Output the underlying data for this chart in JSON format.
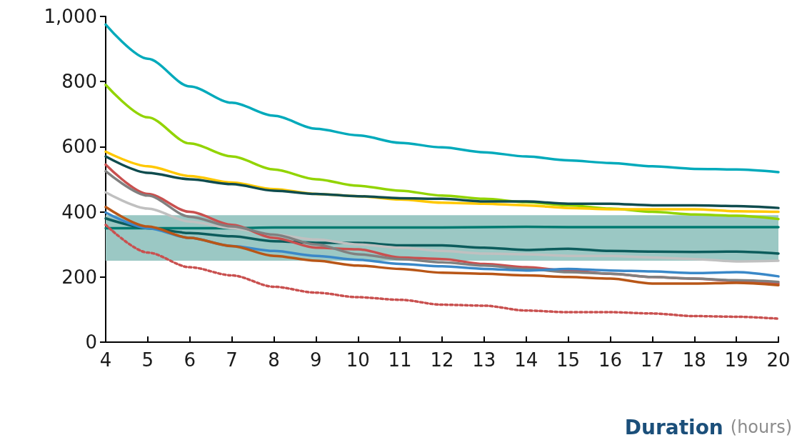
{
  "chart_data": {
    "type": "line",
    "xlabel": "Duration (hours)",
    "x": [
      4,
      5,
      6,
      7,
      8,
      9,
      10,
      11,
      12,
      13,
      14,
      15,
      16,
      17,
      18,
      19,
      20
    ],
    "xlim": [
      4,
      20
    ],
    "xticks": [
      4,
      5,
      6,
      7,
      8,
      9,
      10,
      11,
      12,
      13,
      14,
      15,
      16,
      17,
      18,
      19,
      20
    ],
    "ylim": [
      0,
      1000
    ],
    "yticks": [
      0,
      200,
      400,
      600,
      800,
      {
        "value": 1000,
        "label": "1,000"
      }
    ],
    "grid": false,
    "marker": "none",
    "bands": [
      {
        "axis": "y",
        "from": 250,
        "to": 390,
        "color": "#9bc8c4"
      }
    ],
    "series": [
      {
        "color": "#00aabb",
        "values": [
          975,
          870,
          785,
          735,
          695,
          655,
          635,
          612,
          598,
          583,
          570,
          558,
          550,
          540,
          532,
          530,
          522
        ]
      },
      {
        "color": "#92d400",
        "values": [
          790,
          690,
          610,
          570,
          530,
          500,
          480,
          465,
          450,
          440,
          430,
          420,
          410,
          400,
          392,
          388,
          378
        ]
      },
      {
        "color": "#ffc800",
        "values": [
          585,
          540,
          510,
          490,
          470,
          455,
          448,
          438,
          428,
          425,
          420,
          412,
          408,
          408,
          408,
          402,
          400
        ]
      },
      {
        "color": "#0f4c4e",
        "values": [
          570,
          520,
          500,
          485,
          465,
          455,
          448,
          442,
          440,
          432,
          432,
          425,
          425,
          420,
          420,
          418,
          412
        ]
      },
      {
        "color": "#007a70",
        "values": [
          350,
          350,
          350,
          350,
          352,
          352,
          352,
          352,
          352,
          353,
          354,
          353,
          353,
          353,
          353,
          353,
          353
        ]
      },
      {
        "color": "#0c5c5c",
        "values": [
          380,
          350,
          335,
          325,
          310,
          305,
          305,
          297,
          297,
          290,
          283,
          287,
          280,
          278,
          277,
          278,
          272
        ]
      },
      {
        "color": "#c0c0c0",
        "values": [
          460,
          410,
          370,
          350,
          330,
          315,
          300,
          290,
          280,
          272,
          270,
          265,
          265,
          260,
          255,
          248,
          250
        ]
      },
      {
        "color": "#c9504f",
        "values": [
          545,
          455,
          400,
          360,
          320,
          290,
          285,
          260,
          255,
          240,
          230,
          220,
          210,
          200,
          195,
          188,
          180
        ]
      },
      {
        "color": "#808080",
        "values": [
          525,
          450,
          385,
          355,
          330,
          300,
          270,
          255,
          245,
          235,
          225,
          215,
          210,
          200,
          195,
          190,
          185
        ]
      },
      {
        "color": "#3a88c8",
        "values": [
          398,
          350,
          320,
          295,
          280,
          265,
          253,
          240,
          233,
          225,
          220,
          225,
          220,
          217,
          212,
          215,
          202
        ]
      },
      {
        "color": "#b85617",
        "values": [
          415,
          355,
          320,
          295,
          265,
          250,
          235,
          225,
          213,
          210,
          205,
          200,
          195,
          180,
          180,
          182,
          175
        ]
      },
      {
        "color": "#c9504f",
        "line_style": "dotted",
        "values": [
          360,
          275,
          230,
          205,
          170,
          152,
          138,
          130,
          115,
          112,
          97,
          92,
          92,
          88,
          80,
          78,
          72
        ]
      }
    ]
  }
}
